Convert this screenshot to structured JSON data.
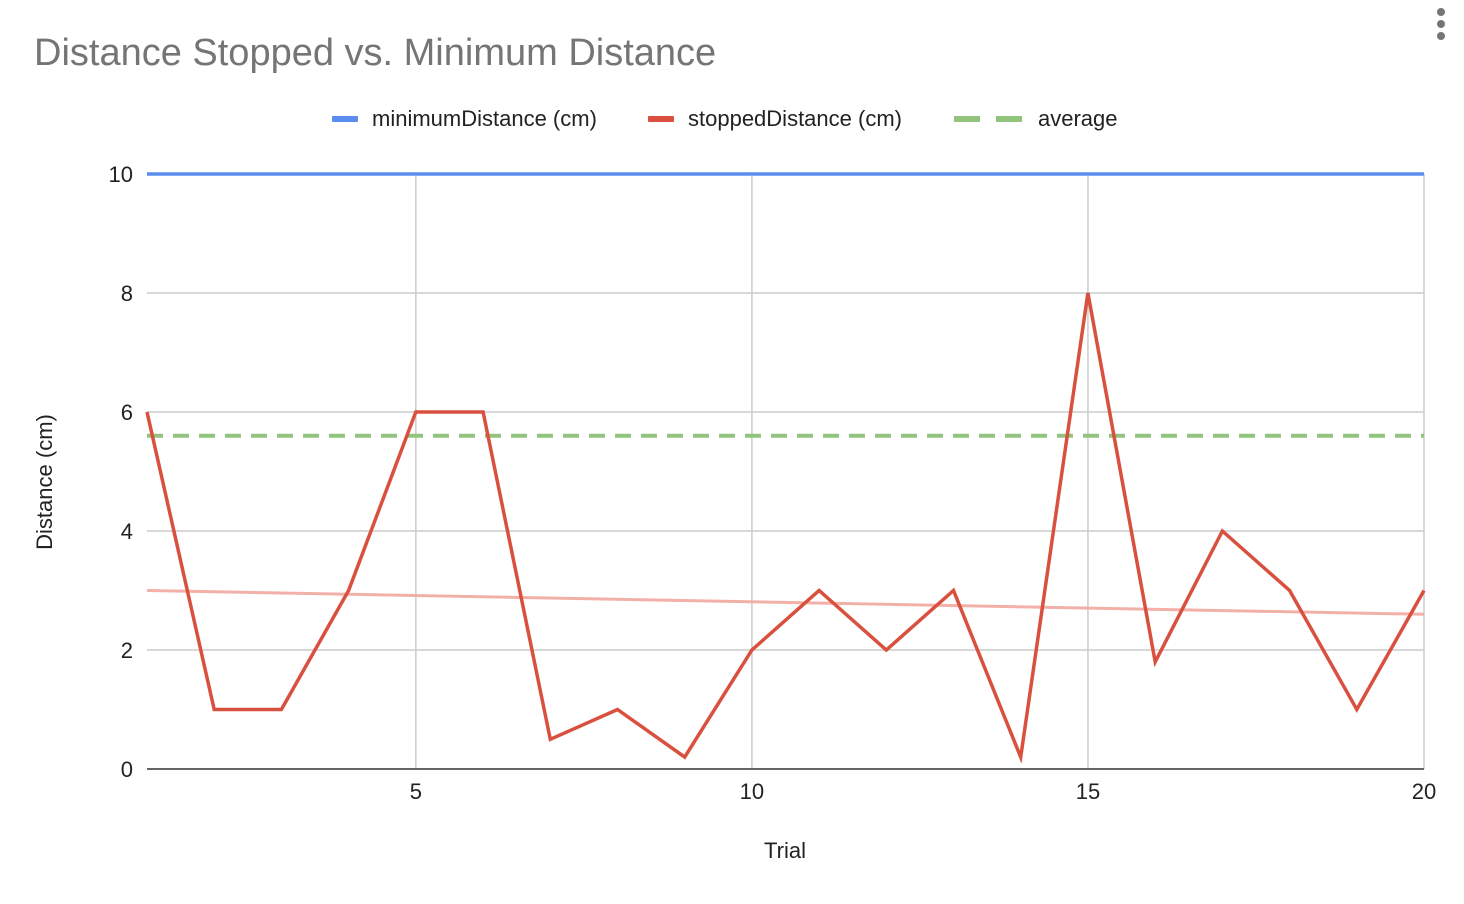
{
  "chart_data": {
    "type": "line",
    "title": "Distance Stopped vs. Minimum Distance",
    "xlabel": "Trial",
    "ylabel": "Distance (cm)",
    "xlim": [
      1,
      20
    ],
    "ylim": [
      0,
      10
    ],
    "x_ticks": [
      5,
      10,
      15,
      20
    ],
    "y_ticks": [
      0,
      2,
      4,
      6,
      8,
      10
    ],
    "grid": true,
    "legend_position": "top",
    "x": [
      1,
      2,
      3,
      4,
      5,
      6,
      7,
      8,
      9,
      10,
      11,
      12,
      13,
      14,
      15,
      16,
      17,
      18,
      19,
      20
    ],
    "series": [
      {
        "name": "minimumDistance (cm)",
        "color": "#5B8DEF",
        "style": "solid",
        "values": [
          10,
          10,
          10,
          10,
          10,
          10,
          10,
          10,
          10,
          10,
          10,
          10,
          10,
          10,
          10,
          10,
          10,
          10,
          10,
          10
        ]
      },
      {
        "name": "stoppedDistance (cm)",
        "color": "#D9503F",
        "style": "solid",
        "values": [
          6,
          1,
          1,
          3,
          6,
          6,
          0.5,
          1,
          0.2,
          2,
          3,
          2,
          3,
          0.2,
          8,
          1.8,
          4,
          3,
          1,
          3
        ]
      },
      {
        "name": "average",
        "color": "#93C47D",
        "style": "dashed",
        "values": [
          5.6,
          5.6,
          5.6,
          5.6,
          5.6,
          5.6,
          5.6,
          5.6,
          5.6,
          5.6,
          5.6,
          5.6,
          5.6,
          5.6,
          5.6,
          5.6,
          5.6,
          5.6,
          5.6,
          5.6
        ]
      }
    ],
    "trendline": {
      "series": "stoppedDistance (cm)",
      "color": "#F2B0A8",
      "start": [
        1,
        3.0
      ],
      "end": [
        20,
        2.6
      ]
    },
    "colors": {
      "grid": "#CCCCCC",
      "baseline": "#333333"
    }
  },
  "menu": {
    "icon": "more-vert-icon"
  }
}
